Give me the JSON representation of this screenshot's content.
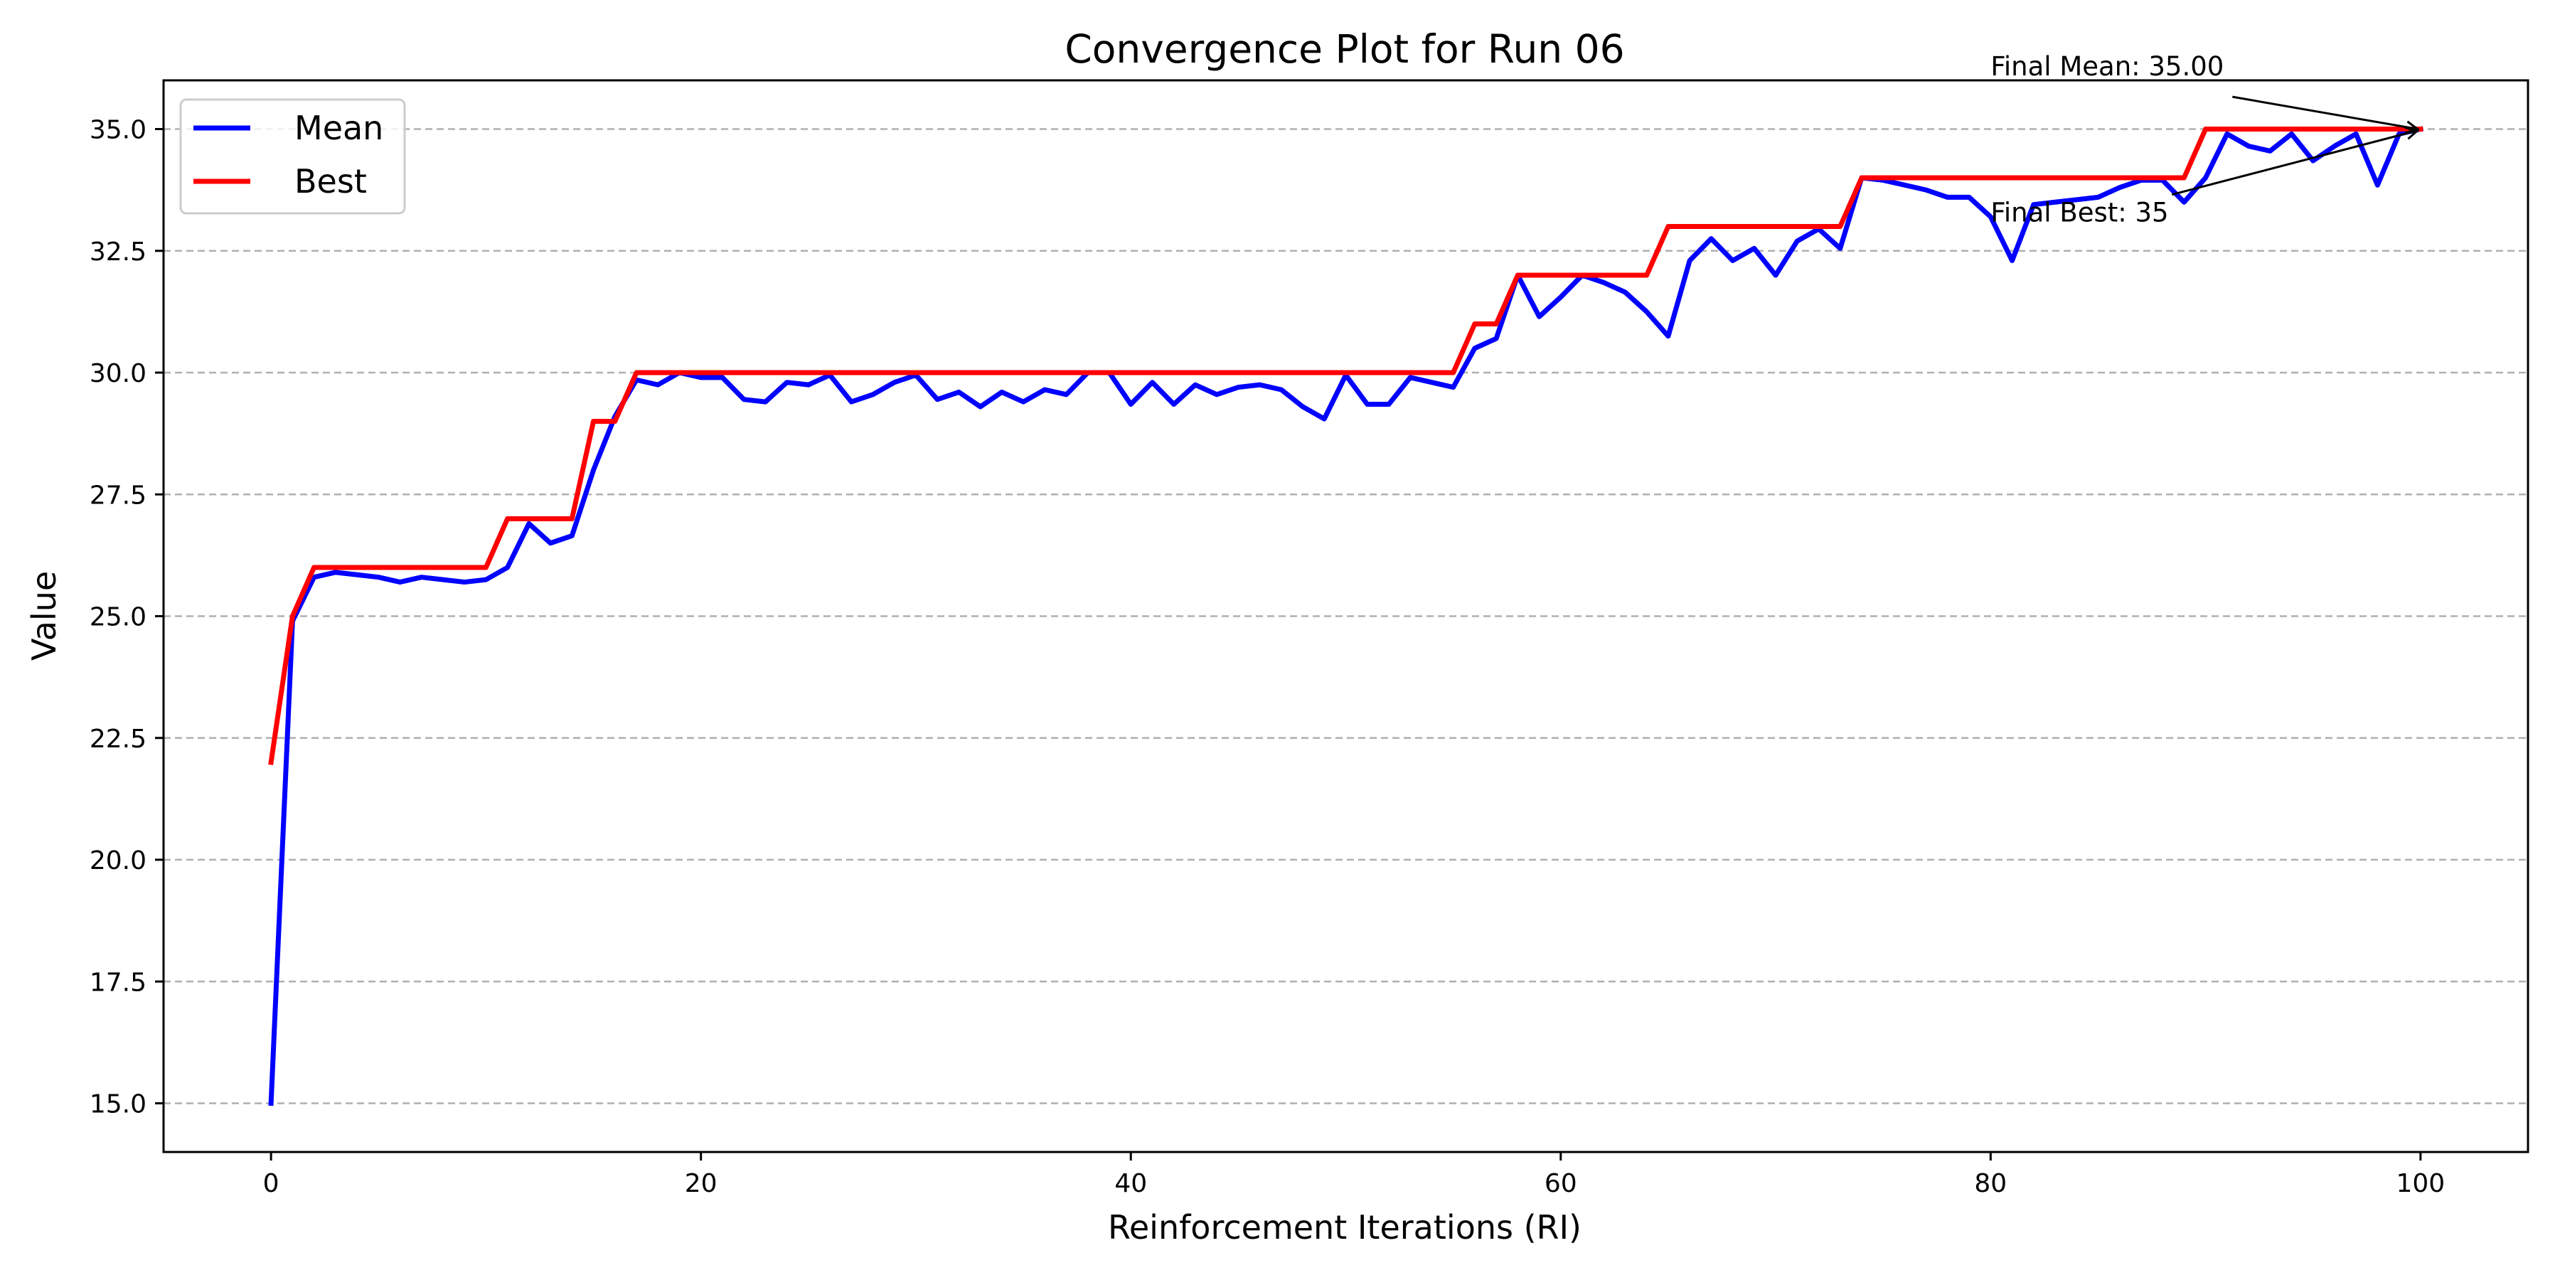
{
  "chart_data": {
    "type": "line",
    "title": "Convergence Plot for Run 06",
    "xlabel": "Reinforcement Iterations (RI)",
    "ylabel": "Value",
    "xlim": [
      -5,
      105
    ],
    "ylim": [
      14,
      36
    ],
    "xticks": [
      0,
      20,
      40,
      60,
      80,
      100
    ],
    "yticks": [
      15.0,
      17.5,
      20.0,
      22.5,
      25.0,
      27.5,
      30.0,
      32.5,
      35.0
    ],
    "ytick_labels": [
      "15.0",
      "17.5",
      "20.0",
      "22.5",
      "25.0",
      "27.5",
      "30.0",
      "32.5",
      "35.0"
    ],
    "xtick_labels": [
      "0",
      "20",
      "40",
      "60",
      "80",
      "100"
    ],
    "grid": "horizontal-dashed",
    "legend_position": "top-left",
    "x": [
      0,
      1,
      2,
      3,
      4,
      5,
      6,
      7,
      8,
      9,
      10,
      11,
      12,
      13,
      14,
      15,
      16,
      17,
      18,
      19,
      20,
      21,
      22,
      23,
      24,
      25,
      26,
      27,
      28,
      29,
      30,
      31,
      32,
      33,
      34,
      35,
      36,
      37,
      38,
      39,
      40,
      41,
      42,
      43,
      44,
      45,
      46,
      47,
      48,
      49,
      50,
      51,
      52,
      53,
      54,
      55,
      56,
      57,
      58,
      59,
      60,
      61,
      62,
      63,
      64,
      65,
      66,
      67,
      68,
      69,
      70,
      71,
      72,
      73,
      74,
      75,
      76,
      77,
      78,
      79,
      80,
      81,
      82,
      83,
      84,
      85,
      86,
      87,
      88,
      89,
      90,
      91,
      92,
      93,
      94,
      95,
      96,
      97,
      98,
      99,
      100
    ],
    "series": [
      {
        "name": "Mean",
        "color": "#0000ff",
        "values": [
          15.0,
          24.9,
          25.8,
          25.9,
          25.85,
          25.8,
          25.7,
          25.8,
          25.75,
          25.7,
          25.75,
          26.0,
          26.9,
          26.5,
          26.65,
          28.0,
          29.1,
          29.85,
          29.75,
          30.0,
          29.9,
          29.9,
          29.45,
          29.4,
          29.8,
          29.75,
          29.95,
          29.4,
          29.55,
          29.8,
          29.95,
          29.45,
          29.6,
          29.3,
          29.6,
          29.4,
          29.65,
          29.55,
          30.0,
          30.0,
          29.35,
          29.8,
          29.35,
          29.75,
          29.55,
          29.7,
          29.75,
          29.65,
          29.3,
          29.05,
          29.95,
          29.35,
          29.35,
          29.9,
          29.8,
          29.7,
          30.5,
          30.7,
          32.0,
          31.15,
          31.55,
          32.0,
          31.85,
          31.65,
          31.25,
          30.75,
          32.3,
          32.75,
          32.3,
          32.55,
          32.0,
          32.7,
          32.95,
          32.55,
          34.0,
          33.95,
          33.85,
          33.75,
          33.6,
          33.6,
          33.2,
          32.3,
          33.45,
          33.5,
          33.55,
          33.6,
          33.8,
          33.95,
          33.95,
          33.5,
          34.0,
          34.9,
          34.65,
          34.55,
          34.9,
          34.35,
          34.65,
          34.9,
          33.85,
          34.9,
          35.0
        ]
      },
      {
        "name": "Best",
        "color": "#ff0000",
        "values": [
          22.0,
          25.0,
          26.0,
          26.0,
          26.0,
          26.0,
          26.0,
          26.0,
          26.0,
          26.0,
          26.0,
          27.0,
          27.0,
          27.0,
          27.0,
          29.0,
          29.0,
          30.0,
          30.0,
          30.0,
          30.0,
          30.0,
          30.0,
          30.0,
          30.0,
          30.0,
          30.0,
          30.0,
          30.0,
          30.0,
          30.0,
          30.0,
          30.0,
          30.0,
          30.0,
          30.0,
          30.0,
          30.0,
          30.0,
          30.0,
          30.0,
          30.0,
          30.0,
          30.0,
          30.0,
          30.0,
          30.0,
          30.0,
          30.0,
          30.0,
          30.0,
          30.0,
          30.0,
          30.0,
          30.0,
          30.0,
          31.0,
          31.0,
          32.0,
          32.0,
          32.0,
          32.0,
          32.0,
          32.0,
          32.0,
          33.0,
          33.0,
          33.0,
          33.0,
          33.0,
          33.0,
          33.0,
          33.0,
          33.0,
          34.0,
          34.0,
          34.0,
          34.0,
          34.0,
          34.0,
          34.0,
          34.0,
          34.0,
          34.0,
          34.0,
          34.0,
          34.0,
          34.0,
          34.0,
          34.0,
          35.0,
          35.0,
          35.0,
          35.0,
          35.0,
          35.0,
          35.0,
          35.0,
          35.0,
          35.0,
          35.0
        ]
      }
    ],
    "annotations": [
      {
        "text": "Final Mean: 35.00",
        "text_at": [
          80,
          36.1
        ],
        "arrow_to": [
          100,
          35.0
        ]
      },
      {
        "text": "Final Best: 35",
        "text_at": [
          80,
          33.1
        ],
        "arrow_to": [
          100,
          35.0
        ]
      }
    ]
  }
}
